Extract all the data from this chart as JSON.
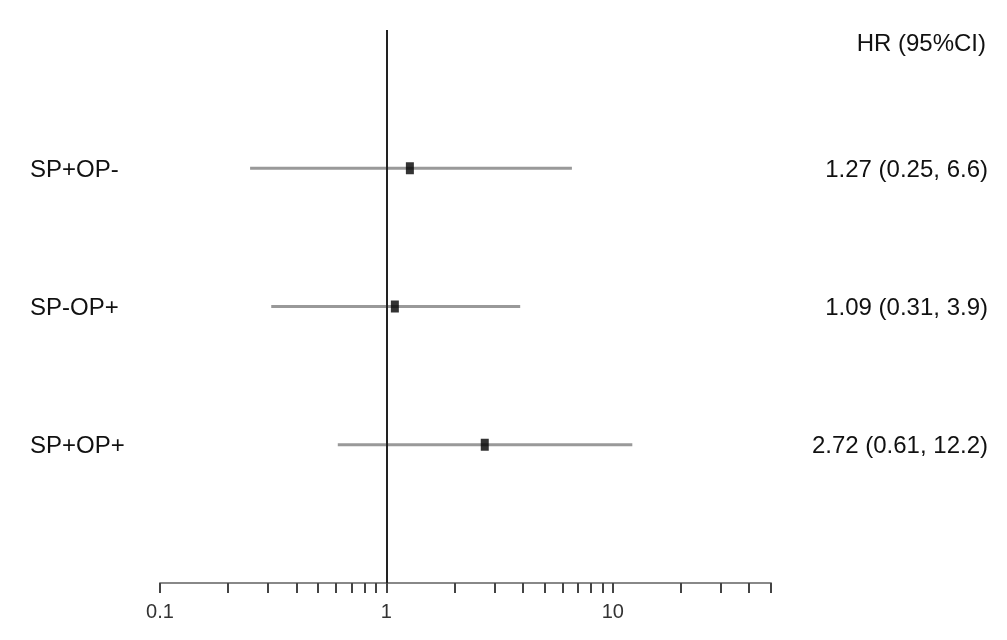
{
  "chart_data": {
    "type": "scatter",
    "orientation": "horizontal",
    "categories": [
      "SP+OP-",
      "SP-OP+",
      "SP+OP+"
    ],
    "values": [
      1.27,
      1.09,
      2.72
    ],
    "errors": [
      [
        0.25,
        6.6
      ],
      [
        0.31,
        3.9
      ],
      [
        0.61,
        12.2
      ]
    ],
    "color": "#000000",
    "value_labels": [
      "1.27 (0.25, 6.6)",
      "1.09 (0.31, 3.9)",
      "2.72 (0.61, 12.2)"
    ],
    "annotations": [
      "HR (95%CI)"
    ],
    "marker": "square",
    "log": "x",
    "xlim": [
      0.1,
      50
    ],
    "xticks": [
      0.1,
      {
        "value": 0.2,
        "label": null
      },
      {
        "value": 0.3,
        "label": null
      },
      {
        "value": 0.4,
        "label": null
      },
      {
        "value": 0.5,
        "label": null
      },
      {
        "value": 0.6,
        "label": null
      },
      {
        "value": 0.7,
        "label": null
      },
      {
        "value": 0.8,
        "label": null
      },
      {
        "value": 0.9,
        "label": null
      },
      1,
      {
        "value": 2,
        "label": null
      },
      {
        "value": 3,
        "label": null
      },
      {
        "value": 4,
        "label": null
      },
      {
        "value": 5,
        "label": null
      },
      {
        "value": 6,
        "label": null
      },
      {
        "value": 7,
        "label": null
      },
      {
        "value": 8,
        "label": null
      },
      {
        "value": 9,
        "label": null
      },
      10,
      {
        "value": 20,
        "label": null
      },
      {
        "value": 30,
        "label": null
      },
      {
        "value": 40,
        "label": null
      },
      {
        "value": 50,
        "label": null
      }
    ],
    "ref_lines": [
      {
        "axis": "x",
        "value": 1,
        "color": "#222222"
      }
    ],
    "grid": false
  }
}
